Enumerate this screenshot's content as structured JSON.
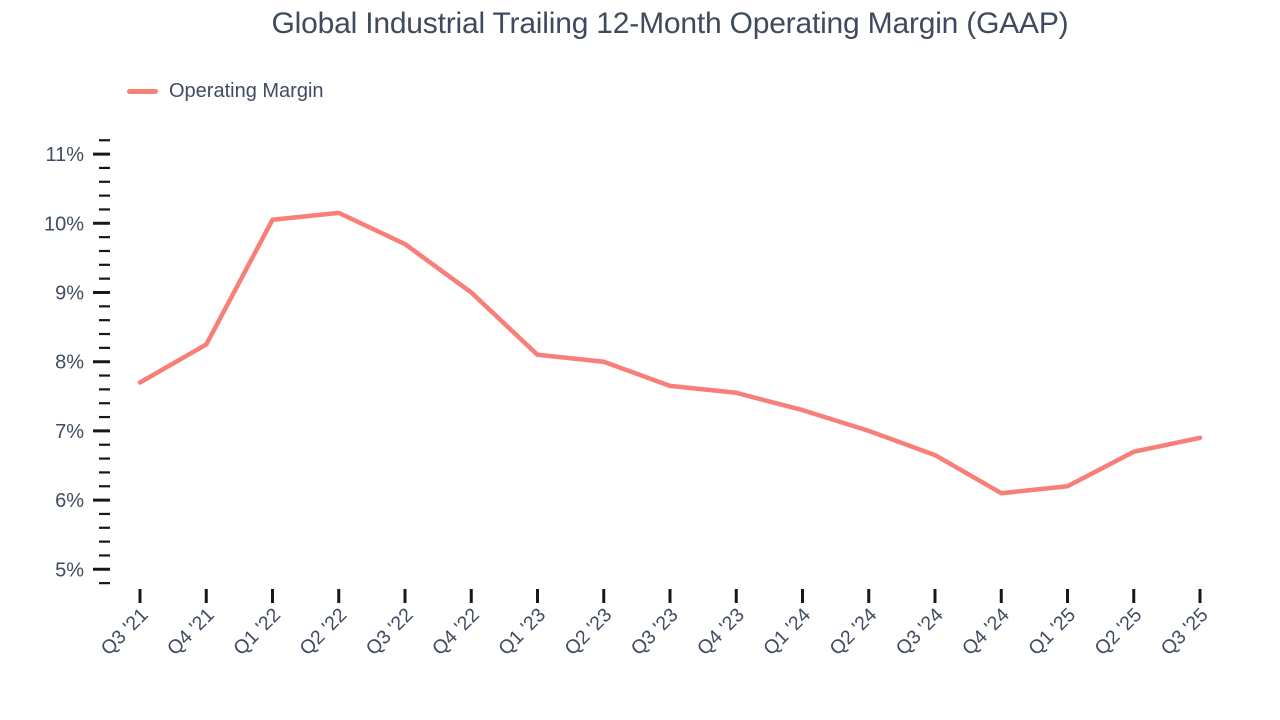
{
  "colors": {
    "line": "#F87E78",
    "text": "#414B61",
    "title": "#3F4A5F",
    "tick": "#15181E",
    "background": "#FFFFFF"
  },
  "legend": {
    "items": [
      {
        "label": "Operating Margin",
        "swatch_color": "#F87E78"
      }
    ]
  },
  "chart_data": {
    "type": "line",
    "title": "Global Industrial Trailing 12-Month Operating Margin (GAAP)",
    "xlabel": "",
    "ylabel": "",
    "categories": [
      "Q3 '21",
      "Q4 '21",
      "Q1 '22",
      "Q2 '22",
      "Q3 '22",
      "Q4 '22",
      "Q1 '23",
      "Q2 '23",
      "Q3 '23",
      "Q4 '23",
      "Q1 '24",
      "Q2 '24",
      "Q3 '24",
      "Q4 '24",
      "Q1 '25",
      "Q2 '25",
      "Q3 '25"
    ],
    "series": [
      {
        "name": "Operating Margin",
        "color": "#F87E78",
        "values": [
          7.7,
          8.25,
          10.05,
          10.15,
          9.7,
          9.0,
          8.1,
          8.0,
          7.65,
          7.55,
          7.3,
          7.0,
          6.65,
          6.1,
          6.2,
          6.7,
          6.9
        ]
      }
    ],
    "ylim": [
      4.8,
      11.2
    ],
    "y_major_tick_step": 1,
    "y_minor_tick_step": 0.2,
    "y_tick_labels": [
      "5%",
      "6%",
      "7%",
      "8%",
      "9%",
      "10%",
      "11%"
    ],
    "grid": false,
    "axis_line": false,
    "legend_position": "top-left",
    "x_labels_rotation_deg": -45
  }
}
